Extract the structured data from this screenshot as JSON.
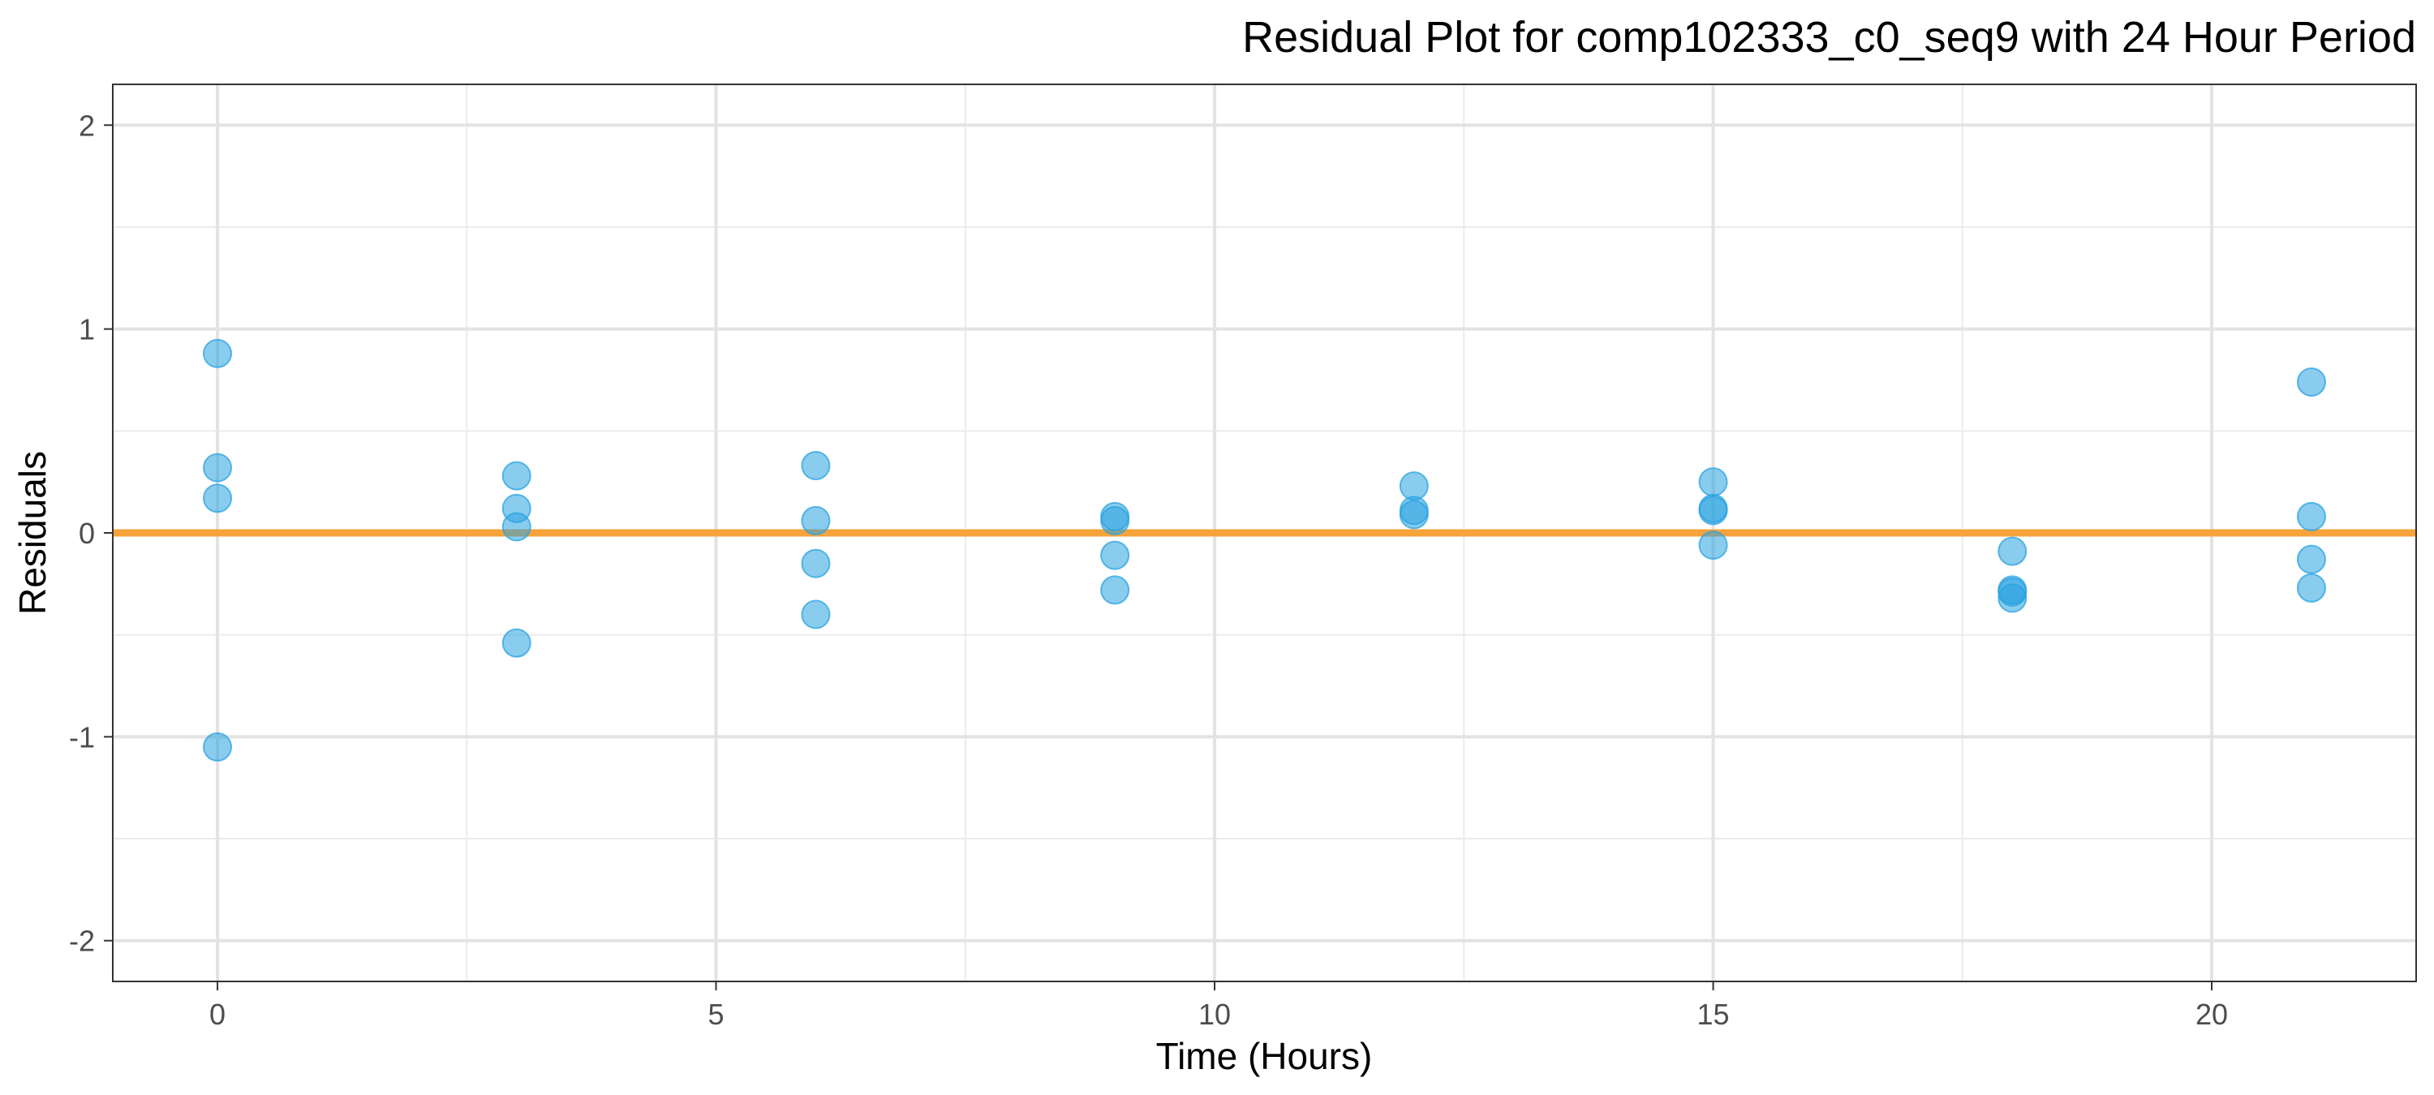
{
  "chart_data": {
    "type": "scatter",
    "title": "Residual Plot for comp102333_c0_seq9 with 24 Hour Period",
    "xlabel": "Time (Hours)",
    "ylabel": "Residuals",
    "xlim": [
      -1.05,
      22.05
    ],
    "ylim": [
      -2.2,
      2.2
    ],
    "x_ticks": [
      0,
      5,
      10,
      15,
      20
    ],
    "y_ticks": [
      -2,
      -1,
      0,
      1,
      2
    ],
    "x_tick_labels": [
      "0",
      "5",
      "10",
      "15",
      "20"
    ],
    "y_tick_labels": [
      "-2",
      "-1",
      "0",
      "1",
      "2"
    ],
    "x_minor_gridlines": [
      2.5,
      7.5,
      12.5,
      17.5
    ],
    "y_minor_gridlines": [
      -1.5,
      -0.5,
      0.5,
      1.5
    ],
    "grid": true,
    "legend": "none",
    "reference_line": {
      "y": 0,
      "color": "#f5a33a"
    },
    "point_color": "#29a3e0",
    "points": [
      {
        "x": 0,
        "y": 0.88
      },
      {
        "x": 0,
        "y": 0.32
      },
      {
        "x": 0,
        "y": 0.17
      },
      {
        "x": 0,
        "y": -1.05
      },
      {
        "x": 3,
        "y": 0.28
      },
      {
        "x": 3,
        "y": 0.12
      },
      {
        "x": 3,
        "y": 0.03
      },
      {
        "x": 3,
        "y": -0.54
      },
      {
        "x": 6,
        "y": 0.33
      },
      {
        "x": 6,
        "y": 0.06
      },
      {
        "x": 6,
        "y": -0.15
      },
      {
        "x": 6,
        "y": -0.4
      },
      {
        "x": 9,
        "y": 0.08
      },
      {
        "x": 9,
        "y": 0.06
      },
      {
        "x": 9,
        "y": -0.11
      },
      {
        "x": 9,
        "y": -0.28
      },
      {
        "x": 12,
        "y": 0.23
      },
      {
        "x": 12,
        "y": 0.11
      },
      {
        "x": 12,
        "y": 0.09
      },
      {
        "x": 15,
        "y": 0.25
      },
      {
        "x": 15,
        "y": 0.12
      },
      {
        "x": 15,
        "y": 0.11
      },
      {
        "x": 15,
        "y": -0.06
      },
      {
        "x": 18,
        "y": -0.09
      },
      {
        "x": 18,
        "y": -0.28
      },
      {
        "x": 18,
        "y": -0.29
      },
      {
        "x": 18,
        "y": -0.32
      },
      {
        "x": 21,
        "y": 0.74
      },
      {
        "x": 21,
        "y": 0.08
      },
      {
        "x": 21,
        "y": -0.13
      },
      {
        "x": 21,
        "y": -0.27
      }
    ]
  }
}
